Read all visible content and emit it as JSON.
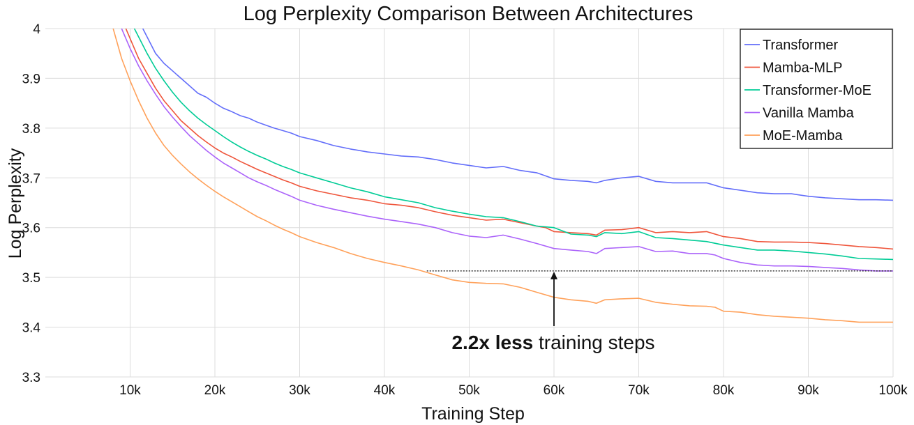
{
  "chart_data": {
    "type": "line",
    "title": "Log Perplexity Comparison Between Architectures",
    "xlabel": "Training Step",
    "ylabel": "Log Perplexity",
    "xlim": [
      0,
      100000
    ],
    "ylim": [
      3.3,
      4.0
    ],
    "xticks": [
      10000,
      20000,
      30000,
      40000,
      50000,
      60000,
      70000,
      80000,
      90000,
      100000
    ],
    "xtick_labels": [
      "10k",
      "20k",
      "30k",
      "40k",
      "50k",
      "60k",
      "70k",
      "80k",
      "90k",
      "100k"
    ],
    "yticks": [
      3.3,
      3.4,
      3.5,
      3.6,
      3.7,
      3.8,
      3.9,
      4.0
    ],
    "ytick_labels": [
      "3.3",
      "3.4",
      "3.5",
      "3.6",
      "3.7",
      "3.8",
      "3.9",
      "4"
    ],
    "grid": true,
    "legend_position": "top-right",
    "series": [
      {
        "name": "Transformer",
        "color": "#636efa",
        "x": [
          11500,
          13000,
          14000,
          15000,
          16000,
          17000,
          18000,
          19000,
          20000,
          21000,
          22000,
          23000,
          24000,
          25000,
          26000,
          27000,
          28000,
          29000,
          30000,
          32000,
          34000,
          36000,
          38000,
          40000,
          42000,
          44000,
          46000,
          48000,
          50000,
          52000,
          54000,
          56000,
          58000,
          60000,
          62000,
          64000,
          65000,
          66000,
          68000,
          70000,
          72000,
          74000,
          76000,
          78000,
          80000,
          82000,
          84000,
          86000,
          88000,
          90000,
          92000,
          94000,
          96000,
          98000,
          100000
        ],
        "y": [
          4.0,
          3.95,
          3.93,
          3.915,
          3.9,
          3.885,
          3.87,
          3.862,
          3.85,
          3.84,
          3.833,
          3.825,
          3.82,
          3.812,
          3.806,
          3.8,
          3.795,
          3.79,
          3.783,
          3.775,
          3.765,
          3.758,
          3.752,
          3.748,
          3.744,
          3.742,
          3.737,
          3.73,
          3.725,
          3.72,
          3.723,
          3.715,
          3.71,
          3.698,
          3.695,
          3.693,
          3.69,
          3.695,
          3.7,
          3.703,
          3.693,
          3.69,
          3.69,
          3.69,
          3.68,
          3.675,
          3.67,
          3.668,
          3.668,
          3.663,
          3.66,
          3.658,
          3.656,
          3.656,
          3.655
        ]
      },
      {
        "name": "Mamba-MLP",
        "color": "#ef553b",
        "x": [
          9500,
          11000,
          12000,
          13000,
          14000,
          15000,
          16000,
          17000,
          18000,
          19000,
          20000,
          21000,
          22000,
          23000,
          24000,
          25000,
          26000,
          27000,
          28000,
          29000,
          30000,
          32000,
          34000,
          36000,
          38000,
          40000,
          42000,
          44000,
          46000,
          48000,
          50000,
          52000,
          54000,
          56000,
          58000,
          59000,
          60000,
          62000,
          64000,
          65000,
          66000,
          68000,
          70000,
          72000,
          74000,
          76000,
          78000,
          80000,
          82000,
          84000,
          86000,
          88000,
          90000,
          92000,
          94000,
          96000,
          98000,
          100000
        ],
        "y": [
          4.0,
          3.94,
          3.91,
          3.88,
          3.855,
          3.835,
          3.815,
          3.8,
          3.785,
          3.772,
          3.76,
          3.75,
          3.742,
          3.733,
          3.725,
          3.717,
          3.71,
          3.703,
          3.696,
          3.69,
          3.683,
          3.674,
          3.667,
          3.66,
          3.655,
          3.648,
          3.645,
          3.64,
          3.632,
          3.625,
          3.62,
          3.615,
          3.617,
          3.61,
          3.603,
          3.6,
          3.592,
          3.59,
          3.588,
          3.585,
          3.595,
          3.596,
          3.6,
          3.59,
          3.592,
          3.59,
          3.592,
          3.582,
          3.578,
          3.572,
          3.571,
          3.571,
          3.57,
          3.568,
          3.565,
          3.562,
          3.56,
          3.557
        ]
      },
      {
        "name": "Transformer-MoE",
        "color": "#00cc96",
        "x": [
          10500,
          12000,
          13000,
          14000,
          15000,
          16000,
          17000,
          18000,
          19000,
          20000,
          21000,
          22000,
          23000,
          24000,
          25000,
          26000,
          27000,
          28000,
          29000,
          30000,
          32000,
          34000,
          36000,
          38000,
          40000,
          42000,
          44000,
          46000,
          48000,
          50000,
          52000,
          54000,
          56000,
          58000,
          60000,
          62000,
          64000,
          65000,
          66000,
          68000,
          70000,
          72000,
          74000,
          76000,
          78000,
          80000,
          82000,
          84000,
          86000,
          88000,
          90000,
          92000,
          94000,
          96000,
          98000,
          100000
        ],
        "y": [
          4.0,
          3.95,
          3.92,
          3.895,
          3.872,
          3.852,
          3.835,
          3.82,
          3.807,
          3.795,
          3.783,
          3.772,
          3.762,
          3.753,
          3.745,
          3.738,
          3.73,
          3.723,
          3.717,
          3.71,
          3.7,
          3.69,
          3.68,
          3.672,
          3.662,
          3.656,
          3.65,
          3.64,
          3.633,
          3.627,
          3.622,
          3.62,
          3.612,
          3.603,
          3.6,
          3.587,
          3.585,
          3.582,
          3.59,
          3.588,
          3.592,
          3.58,
          3.578,
          3.575,
          3.572,
          3.565,
          3.56,
          3.555,
          3.555,
          3.553,
          3.55,
          3.547,
          3.543,
          3.538,
          3.537,
          3.536
        ]
      },
      {
        "name": "Vanilla Mamba",
        "color": "#ab63fa",
        "x": [
          9000,
          10000,
          11000,
          12000,
          13000,
          14000,
          15000,
          16000,
          17000,
          18000,
          19000,
          20000,
          21000,
          22000,
          23000,
          24000,
          25000,
          26000,
          27000,
          28000,
          29000,
          30000,
          32000,
          34000,
          36000,
          38000,
          40000,
          42000,
          44000,
          46000,
          48000,
          50000,
          52000,
          54000,
          56000,
          58000,
          60000,
          62000,
          64000,
          65000,
          66000,
          68000,
          70000,
          72000,
          74000,
          76000,
          78000,
          79000,
          80000,
          82000,
          84000,
          86000,
          88000,
          90000,
          92000,
          94000,
          96000,
          98000,
          100000
        ],
        "y": [
          4.0,
          3.96,
          3.925,
          3.895,
          3.868,
          3.843,
          3.822,
          3.803,
          3.785,
          3.77,
          3.755,
          3.742,
          3.73,
          3.72,
          3.71,
          3.7,
          3.692,
          3.685,
          3.677,
          3.67,
          3.663,
          3.655,
          3.645,
          3.637,
          3.63,
          3.623,
          3.617,
          3.612,
          3.607,
          3.6,
          3.59,
          3.583,
          3.58,
          3.585,
          3.577,
          3.568,
          3.558,
          3.555,
          3.552,
          3.548,
          3.558,
          3.56,
          3.562,
          3.552,
          3.553,
          3.548,
          3.548,
          3.545,
          3.538,
          3.53,
          3.525,
          3.523,
          3.523,
          3.522,
          3.52,
          3.518,
          3.515,
          3.513,
          3.513
        ]
      },
      {
        "name": "MoE-Mamba",
        "color": "#ffa15a",
        "x": [
          8000,
          9000,
          10000,
          11000,
          12000,
          13000,
          14000,
          15000,
          16000,
          17000,
          18000,
          19000,
          20000,
          21000,
          22000,
          23000,
          24000,
          25000,
          26000,
          27000,
          28000,
          29000,
          30000,
          32000,
          34000,
          36000,
          38000,
          40000,
          42000,
          44000,
          46000,
          48000,
          50000,
          52000,
          54000,
          56000,
          58000,
          60000,
          62000,
          64000,
          65000,
          66000,
          68000,
          70000,
          72000,
          74000,
          76000,
          78000,
          79000,
          80000,
          82000,
          84000,
          86000,
          88000,
          90000,
          92000,
          94000,
          96000,
          98000,
          100000
        ],
        "y": [
          4.0,
          3.94,
          3.895,
          3.855,
          3.82,
          3.79,
          3.765,
          3.745,
          3.728,
          3.712,
          3.698,
          3.685,
          3.673,
          3.662,
          3.652,
          3.642,
          3.632,
          3.622,
          3.614,
          3.605,
          3.597,
          3.59,
          3.582,
          3.57,
          3.56,
          3.548,
          3.538,
          3.53,
          3.523,
          3.515,
          3.505,
          3.495,
          3.49,
          3.488,
          3.487,
          3.48,
          3.47,
          3.46,
          3.455,
          3.452,
          3.448,
          3.455,
          3.457,
          3.458,
          3.45,
          3.446,
          3.443,
          3.442,
          3.44,
          3.432,
          3.43,
          3.425,
          3.422,
          3.42,
          3.418,
          3.415,
          3.413,
          3.41,
          3.41,
          3.41
        ]
      }
    ],
    "annotation": {
      "bold_text": "2.2x less",
      "text": " training steps",
      "reference_y": 3.513,
      "reference_x_range": [
        45000,
        100000
      ],
      "arrow_x": 60000
    }
  }
}
